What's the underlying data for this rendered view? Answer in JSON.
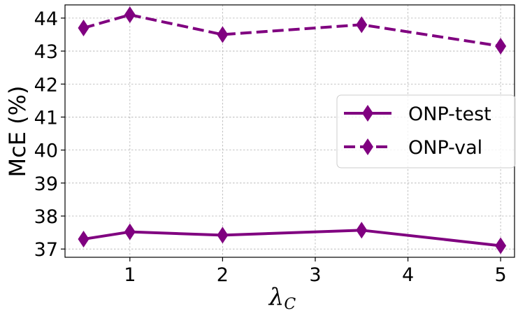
{
  "chart_data": {
    "type": "line",
    "xlabel": "λ",
    "xlabel_sub": "C",
    "ylabel": "McE (%)",
    "xlim": [
      0.3,
      5.15
    ],
    "ylim": [
      36.75,
      44.4
    ],
    "xticks": [
      1,
      2,
      3,
      4,
      5
    ],
    "yticks": [
      37,
      38,
      39,
      40,
      41,
      42,
      43,
      44
    ],
    "grid": true,
    "legend_position": "center-right",
    "color": "#800080",
    "x": [
      0.5,
      1,
      2,
      3.5,
      5
    ],
    "series": [
      {
        "name": "ONP-test",
        "linestyle": "solid",
        "values": [
          37.3,
          37.52,
          37.42,
          37.57,
          37.1
        ]
      },
      {
        "name": "ONP-val",
        "linestyle": "dashed",
        "values": [
          43.7,
          44.1,
          43.5,
          43.8,
          43.15
        ]
      }
    ]
  }
}
